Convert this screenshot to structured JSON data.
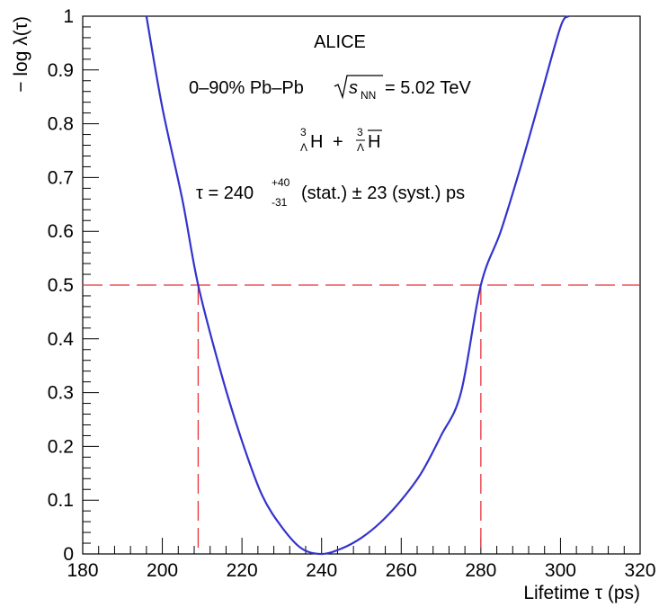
{
  "chart_data": {
    "type": "line",
    "title": "",
    "xlabel": "Lifetime τ (ps)",
    "ylabel": "− log λ(τ)",
    "xlim": [
      180,
      320
    ],
    "ylim": [
      0,
      1
    ],
    "x_ticks": [
      180,
      200,
      220,
      240,
      260,
      280,
      300,
      320
    ],
    "y_ticks": [
      0,
      0.1,
      0.2,
      0.3,
      0.4,
      0.5,
      0.6,
      0.7,
      0.8,
      0.9,
      1
    ],
    "grid": false,
    "legend": "none",
    "series": [
      {
        "color": "#3333cc",
        "x": [
          196.0,
          200.0,
          205.0,
          209.0,
          215.0,
          220.0,
          225.0,
          230.0,
          235.0,
          240.0,
          245.0,
          250.0,
          255.0,
          260.0,
          265.0,
          270.0,
          275.0,
          280.0,
          285.0,
          290.0,
          295.0,
          300.0,
          302.0
        ],
        "y": [
          1.0,
          0.83,
          0.66,
          0.5,
          0.33,
          0.21,
          0.11,
          0.05,
          0.01,
          0.0,
          0.01,
          0.03,
          0.06,
          0.1,
          0.15,
          0.22,
          0.3,
          0.5,
          0.6,
          0.72,
          0.85,
          0.98,
          1.0
        ]
      }
    ],
    "reference_lines": {
      "color": "#e8303a",
      "horizontal_y": 0.5,
      "vertical_x": [
        209,
        280
      ]
    },
    "annotations": {
      "experiment": "ALICE",
      "collision_prefix": "0–90% Pb–Pb",
      "sqrt_s_symbol": "s",
      "sqrt_s_subscript": "NN",
      "sqrt_s_value": "= 5.02 TeV",
      "particle_lambda": "Λ",
      "particle_mass": "3",
      "particle_H": "H",
      "particle_plus": "+",
      "result_prefix": "τ = 240",
      "result_up": "+40",
      "result_down": "-31",
      "result_suffix": "(stat.) ± 23 (syst.) ps"
    }
  }
}
